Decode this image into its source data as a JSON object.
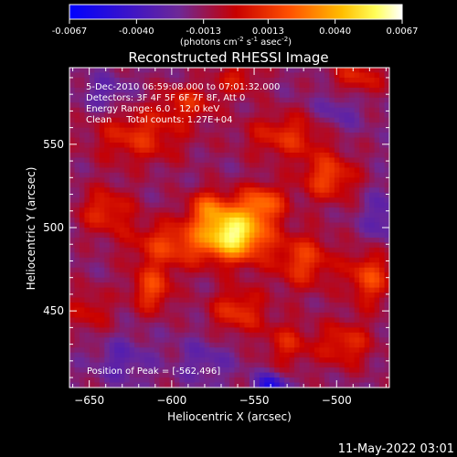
{
  "chart_data": {
    "type": "heatmap",
    "title": "Reconstructed RHESSI Image",
    "xlabel": "Heliocentric X (arcsec)",
    "ylabel": "Heliocentric Y (arcsec)",
    "xlim": [
      -662,
      -468
    ],
    "ylim": [
      404,
      596
    ],
    "xticks": [
      -650,
      -600,
      -550,
      -500
    ],
    "yticks": [
      450,
      500,
      550
    ],
    "grid": false,
    "colorbar": {
      "min": -0.0067,
      "max": 0.0067,
      "tick_values": [
        -0.0067,
        -0.004,
        -0.0013,
        0.0013,
        0.004,
        0.0067
      ],
      "tick_labels": [
        "-0.0067",
        "-0.0040",
        "-0.0013",
        "0.0013",
        "0.0040",
        "0.0067"
      ],
      "units_text": "(photons cm",
      "units_sup1": "-2",
      "units_mid": " s",
      "units_sup2": "-1",
      "units_mid2": " asec",
      "units_sup3": "-2",
      "units_end": ")"
    },
    "annotations": [
      "5-Dec-2010 06:59:08.000 to 07:01:32.000",
      "Detectors: 3F 4F 5F 6F 7F 8F, Att 0",
      "Energy Range: 6.0 - 12.0 keV",
      "Clean     Total counts: 1.27E+04"
    ],
    "peak_label": "Position of Peak = [-562,496]",
    "peak": {
      "x": -562,
      "y": 496
    },
    "sources": [
      {
        "x": -562,
        "y": 496,
        "sx": 14,
        "sy": 11,
        "amp": 0.0072
      },
      {
        "x": -545,
        "y": 515,
        "sx": 10,
        "sy": 8,
        "amp": 0.0036
      },
      {
        "x": -578,
        "y": 512,
        "sx": 9,
        "sy": 8,
        "amp": 0.003
      },
      {
        "x": -600,
        "y": 490,
        "sx": 18,
        "sy": 10,
        "amp": 0.003
      },
      {
        "x": -620,
        "y": 555,
        "sx": 20,
        "sy": 12,
        "amp": 0.0026
      },
      {
        "x": -640,
        "y": 510,
        "sx": 12,
        "sy": 10,
        "amp": 0.0026
      },
      {
        "x": -612,
        "y": 463,
        "sx": 9,
        "sy": 10,
        "amp": 0.0032
      },
      {
        "x": -520,
        "y": 480,
        "sx": 13,
        "sy": 12,
        "amp": 0.003
      },
      {
        "x": -505,
        "y": 530,
        "sx": 12,
        "sy": 10,
        "amp": 0.0032
      },
      {
        "x": -530,
        "y": 555,
        "sx": 18,
        "sy": 10,
        "amp": 0.0026
      },
      {
        "x": -480,
        "y": 470,
        "sx": 10,
        "sy": 12,
        "amp": 0.0032
      },
      {
        "x": -495,
        "y": 430,
        "sx": 12,
        "sy": 10,
        "amp": 0.0026
      },
      {
        "x": -560,
        "y": 450,
        "sx": 12,
        "sy": 10,
        "amp": 0.0028
      },
      {
        "x": -530,
        "y": 430,
        "sx": 10,
        "sy": 10,
        "amp": 0.0022
      },
      {
        "x": -590,
        "y": 575,
        "sx": 12,
        "sy": 8,
        "amp": 0.0022
      },
      {
        "x": -650,
        "y": 450,
        "sx": 10,
        "sy": 10,
        "amp": 0.0018
      },
      {
        "x": -560,
        "y": 590,
        "sx": 10,
        "sy": 8,
        "amp": 0.002
      },
      {
        "x": -488,
        "y": 590,
        "sx": 12,
        "sy": 8,
        "amp": 0.0024
      },
      {
        "x": -640,
        "y": 580,
        "sx": 10,
        "sy": 8,
        "amp": -0.0015
      },
      {
        "x": -630,
        "y": 420,
        "sx": 12,
        "sy": 10,
        "amp": -0.0014
      },
      {
        "x": -540,
        "y": 405,
        "sx": 6,
        "sy": 5,
        "amp": -0.004
      },
      {
        "x": -470,
        "y": 505,
        "sx": 10,
        "sy": 12,
        "amp": -0.0016
      },
      {
        "x": -580,
        "y": 420,
        "sx": 12,
        "sy": 10,
        "amp": -0.0012
      },
      {
        "x": -500,
        "y": 570,
        "sx": 10,
        "sy": 10,
        "amp": -0.0014
      }
    ],
    "background": -0.0016
  },
  "footer": {
    "timestamp": "11-May-2022 03:01"
  }
}
